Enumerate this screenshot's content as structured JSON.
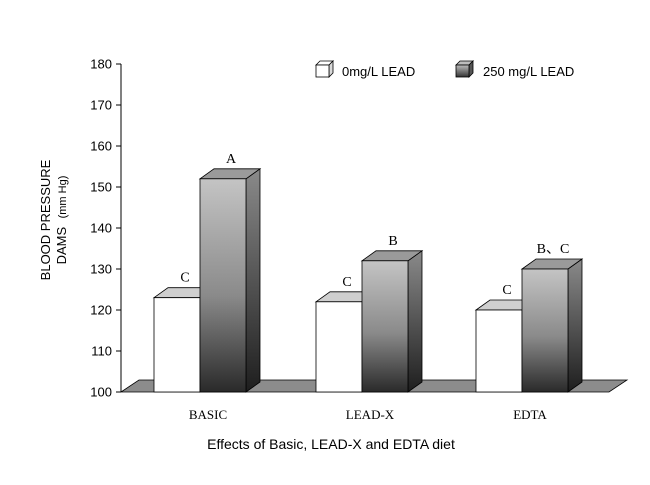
{
  "chart_data": {
    "type": "bar",
    "style": "3d-clustered-column",
    "categories": [
      "BASIC",
      "LEAD-X",
      "EDTA"
    ],
    "series": [
      {
        "name": "0mg/L  LEAD",
        "values": [
          123,
          122,
          120
        ],
        "labels": [
          "C",
          "C",
          "C"
        ],
        "color": "#ffffff"
      },
      {
        "name": "250 mg/L  LEAD",
        "values": [
          152,
          132,
          130
        ],
        "labels": [
          "A",
          "B",
          "B、C"
        ],
        "color": "#808080"
      }
    ],
    "ylim": [
      100,
      180
    ],
    "yticks": [
      100,
      110,
      120,
      130,
      140,
      150,
      160,
      170,
      180
    ],
    "ylabel_line1": "BLOOD PRESSURE",
    "ylabel_line2": "DAMS",
    "ylabel_unit": "(mm Hg)",
    "xlabel": "Effects of  Basic, LEAD-X and EDTA diet",
    "legend": "top-right",
    "grid": false
  }
}
